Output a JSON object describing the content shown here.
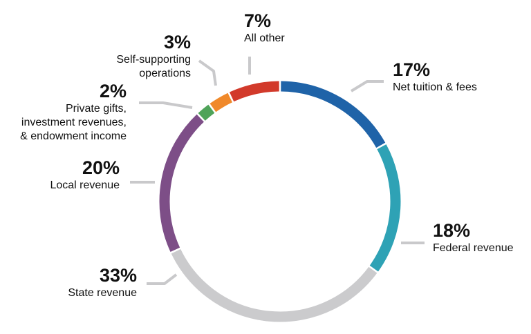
{
  "chart_data": {
    "type": "donut",
    "title": "",
    "unit": "%",
    "slices": [
      {
        "name": "Net tuition & fees",
        "label_lines": [
          "Net tuition & fees"
        ],
        "value": 17,
        "display": "17%",
        "color": "#1f63a8"
      },
      {
        "name": "Federal revenue",
        "label_lines": [
          "Federal revenue"
        ],
        "value": 18,
        "display": "18%",
        "color": "#2ea2b5"
      },
      {
        "name": "State revenue",
        "label_lines": [
          "State revenue"
        ],
        "value": 33,
        "display": "33%",
        "color": "#cbcbcd"
      },
      {
        "name": "Local revenue",
        "label_lines": [
          "Local revenue"
        ],
        "value": 20,
        "display": "20%",
        "color": "#7d4e87"
      },
      {
        "name": "Private gifts, investment revenues, & endowment income",
        "label_lines": [
          "Private gifts,",
          "investment revenues,",
          "& endowment income"
        ],
        "value": 2,
        "display": "2%",
        "color": "#4fa359"
      },
      {
        "name": "Self-supporting operations",
        "label_lines": [
          "Self-supporting",
          "operations"
        ],
        "value": 3,
        "display": "3%",
        "color": "#f0892a"
      },
      {
        "name": "All other",
        "label_lines": [
          "All other"
        ],
        "value": 7,
        "display": "7%",
        "color": "#d23a2b"
      }
    ]
  }
}
